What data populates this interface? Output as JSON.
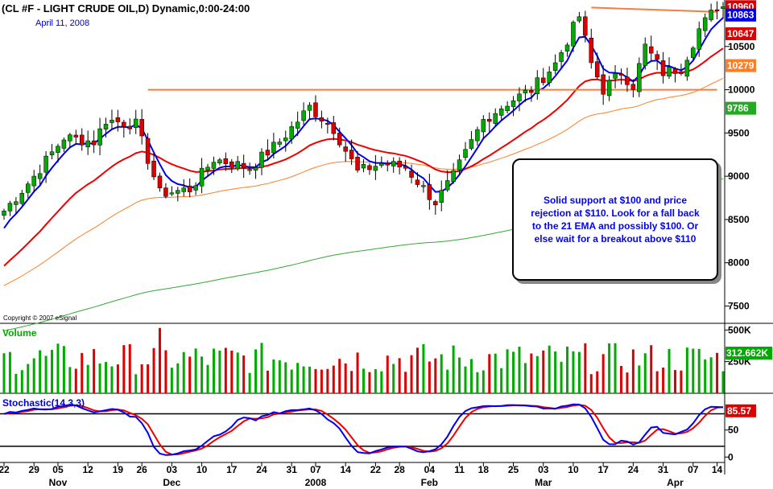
{
  "chart_title": "(CL #F - LIGHT CRUDE OIL,D) Dynamic,0:00-24:00",
  "date_label": "April 11, 2008",
  "copyright": "Copyright © 2007 eSignal",
  "annotation": "Solid support at $100 and price rejection at $110. Look for a fall back to the 21 EMA and possibly $100. Or else wait for a breakout above $110",
  "colors": {
    "up_candle": "#00aa00",
    "down_candle": "#dd0000",
    "ema_fast": "#0000ee",
    "ema_21": "#ee0000",
    "ema_mid": "#ff7f27",
    "ema_slow": "#33aa33",
    "trendline": "#f08040",
    "grid": "#000000"
  },
  "price_panel": {
    "ylim": [
      7300,
      11000
    ],
    "ticks": [
      {
        "value": 7500,
        "label": "7500"
      },
      {
        "value": 8000,
        "label": "8000"
      },
      {
        "value": 8500,
        "label": "8500"
      },
      {
        "value": 9000,
        "label": "9000"
      },
      {
        "value": 9500,
        "label": "9500"
      },
      {
        "value": 10000,
        "label": "10000"
      },
      {
        "value": 10500,
        "label": "10500"
      }
    ],
    "tags": [
      {
        "value": 10960,
        "label": "10960",
        "color": "#dd0000"
      },
      {
        "value": 10863,
        "label": "10863",
        "color": "#0000ee"
      },
      {
        "value": 10647,
        "label": "10647",
        "color": "#dd0000"
      },
      {
        "value": 10279,
        "label": "10279",
        "color": "#ff7f27"
      },
      {
        "value": 9786,
        "label": "9786",
        "color": "#22aa22"
      }
    ]
  },
  "volume_panel": {
    "title": "Volume",
    "ylim": [
      0,
      540
    ],
    "ticks": [
      {
        "value": 500,
        "label": "500K"
      },
      {
        "value": 250,
        "label": "250K"
      }
    ],
    "last_label": "312.662K"
  },
  "stoch_panel": {
    "title": "Stochastic(14,3,3)",
    "ylim": [
      -10,
      115
    ],
    "ticks": [
      {
        "value": 50,
        "label": "50"
      },
      {
        "value": 0,
        "label": "0"
      }
    ],
    "lines": [
      80,
      20
    ],
    "last_label": "85.57"
  },
  "x_ticks": [
    {
      "i": 0,
      "label": "22"
    },
    {
      "i": 5,
      "label": "29"
    },
    {
      "i": 9,
      "label": "05"
    },
    {
      "i": 14,
      "label": "12"
    },
    {
      "i": 19,
      "label": "19"
    },
    {
      "i": 23,
      "label": "26"
    },
    {
      "i": 28,
      "label": "03"
    },
    {
      "i": 33,
      "label": "10"
    },
    {
      "i": 38,
      "label": "17"
    },
    {
      "i": 43,
      "label": "24"
    },
    {
      "i": 48,
      "label": "31"
    },
    {
      "i": 52,
      "label": "07"
    },
    {
      "i": 57,
      "label": "14"
    },
    {
      "i": 62,
      "label": "22"
    },
    {
      "i": 66,
      "label": "28"
    },
    {
      "i": 71,
      "label": "04"
    },
    {
      "i": 76,
      "label": "11"
    },
    {
      "i": 80,
      "label": "18"
    },
    {
      "i": 85,
      "label": "25"
    },
    {
      "i": 90,
      "label": "03"
    },
    {
      "i": 95,
      "label": "10"
    },
    {
      "i": 100,
      "label": "17"
    },
    {
      "i": 105,
      "label": "24"
    },
    {
      "i": 110,
      "label": "31"
    },
    {
      "i": 115,
      "label": "07"
    },
    {
      "i": 119,
      "label": "14"
    }
  ],
  "month_labels": [
    {
      "i": 9,
      "label": "Nov"
    },
    {
      "i": 28,
      "label": "Dec"
    },
    {
      "i": 52,
      "label": "2008"
    },
    {
      "i": 71,
      "label": "Feb"
    },
    {
      "i": 90,
      "label": "Mar"
    },
    {
      "i": 112,
      "label": "Apr"
    }
  ],
  "chart_data": {
    "type": "line",
    "title": "(CL #F - LIGHT CRUDE OIL,D) Dynamic,0:00-24:00",
    "x_range": [
      "2007-10-22",
      "2008-04-11"
    ],
    "close_anchors": [
      [
        0,
        8600
      ],
      [
        5,
        9000
      ],
      [
        10,
        9450
      ],
      [
        15,
        9400
      ],
      [
        17,
        9650
      ],
      [
        22,
        9600
      ],
      [
        26,
        8800
      ],
      [
        31,
        8850
      ],
      [
        35,
        9200
      ],
      [
        41,
        9100
      ],
      [
        46,
        9400
      ],
      [
        51,
        9800
      ],
      [
        55,
        9550
      ],
      [
        59,
        9050
      ],
      [
        63,
        9150
      ],
      [
        67,
        9100
      ],
      [
        72,
        8700
      ],
      [
        75,
        9000
      ],
      [
        80,
        9650
      ],
      [
        84,
        9850
      ],
      [
        88,
        10000
      ],
      [
        92,
        10300
      ],
      [
        96,
        10850
      ],
      [
        98,
        10300
      ],
      [
        100,
        10000
      ],
      [
        103,
        10200
      ],
      [
        105,
        10050
      ],
      [
        107,
        10500
      ],
      [
        110,
        10200
      ],
      [
        113,
        10250
      ],
      [
        116,
        10700
      ],
      [
        119,
        10960
      ]
    ],
    "trendlines": [
      {
        "from": [
          24,
          10000
        ],
        "to": [
          119,
          10000
        ]
      },
      {
        "from": [
          98,
          10950
        ],
        "to": [
          119,
          10900
        ]
      }
    ],
    "annotation": "Solid support at $100 and price rejection at $110. Look for a fall back to the 21 EMA and possibly $100. Or else wait for a breakout above $110",
    "last_values": {
      "price": 10960,
      "ema_fast": 10863,
      "ema_21": 10647,
      "ema_mid": 10279,
      "ema_slow": 9786,
      "volume_k": 312.662,
      "stochastic": 85.57
    }
  }
}
